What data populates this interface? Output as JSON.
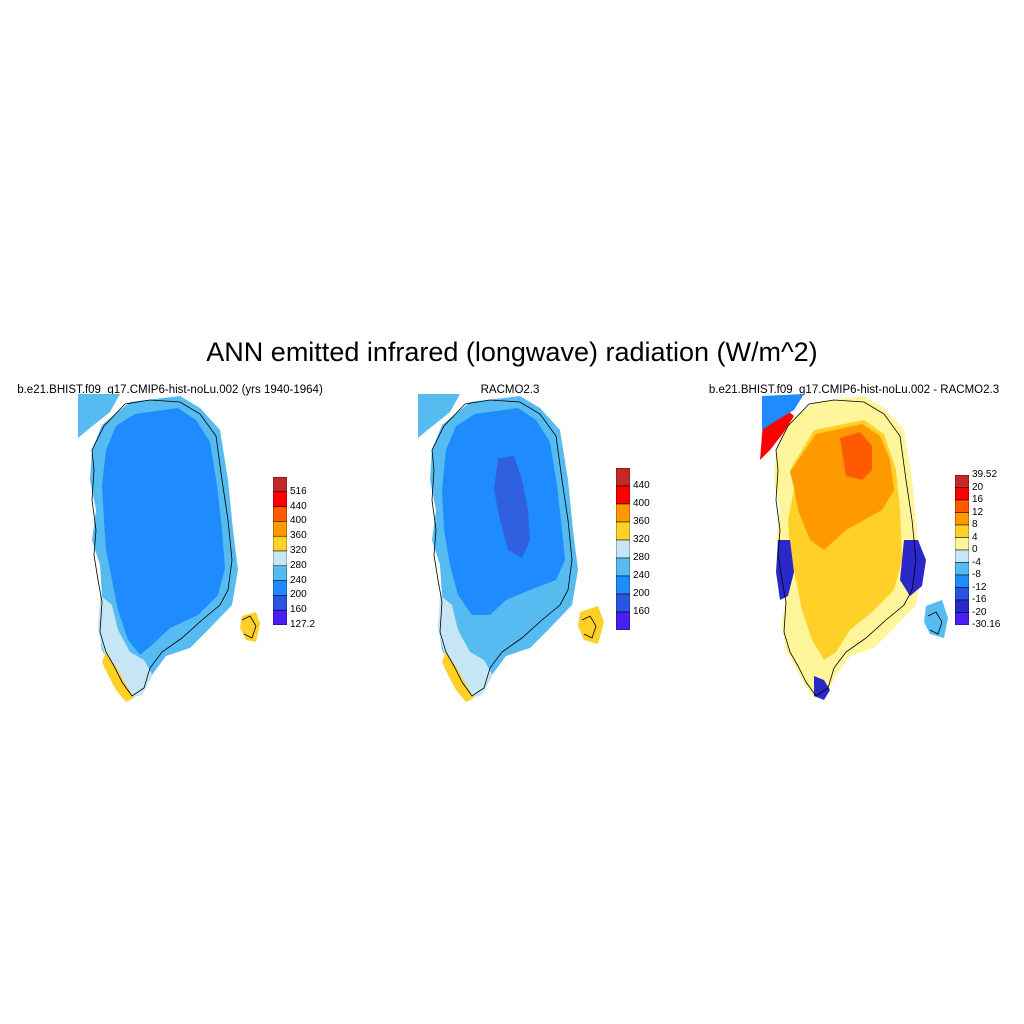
{
  "title": "ANN emitted infrared (longwave) radiation (W/m^2)",
  "panels": [
    {
      "title": "b.e21.BHIST.f09_g17.CMIP6-hist-noLu.002 (yrs 1940-1964)",
      "colorbar": {
        "labels": [
          "516",
          "440",
          "400",
          "360",
          "320",
          "280",
          "240",
          "200",
          "160",
          "127.2"
        ],
        "colors": [
          "#c62828",
          "#ff0000",
          "#ff5a00",
          "#ff9900",
          "#ffd028",
          "#c6e6f5",
          "#55bbf0",
          "#1e8cff",
          "#2a55e0",
          "#4a1ef0"
        ]
      },
      "fields": {
        "north": "#1e8cff",
        "south": "#1e8cff",
        "rim": "#55bbf0",
        "coast": "#c6e6f5",
        "tip": "#ffd028",
        "east_island": "#ffd028"
      }
    },
    {
      "title": "RACMO2.3",
      "colorbar": {
        "labels": [
          "440",
          "400",
          "360",
          "320",
          "280",
          "240",
          "200",
          "160"
        ],
        "colors": [
          "#c62828",
          "#ff0000",
          "#ff9900",
          "#ffd028",
          "#c6e6f5",
          "#55bbf0",
          "#1e8cff",
          "#2a55e0",
          "#4a1ef0"
        ]
      },
      "fields": {
        "north": "#1e8cff",
        "south": "#55bbf0",
        "rim": "#55bbf0",
        "coast": "#c6e6f5",
        "tip": "#ffd028",
        "east_island": "#ffd028",
        "core": "#3060e0"
      }
    },
    {
      "title": "b.e21.BHIST.f09_g17.CMIP6-hist-noLu.002 - RACMO2.3",
      "colorbar": {
        "labels": [
          "39.52",
          "20",
          "16",
          "12",
          "8",
          "4",
          "0",
          "-4",
          "-8",
          "-12",
          "-16",
          "-20",
          "-30.16"
        ],
        "colors": [
          "#c62828",
          "#ff0000",
          "#ff5a00",
          "#ff9900",
          "#ffd028",
          "#fff59a",
          "#c6e6f5",
          "#55bbf0",
          "#1e8cff",
          "#2a55e0",
          "#2a28c8",
          "#4a1ef0"
        ]
      },
      "fields": {
        "north": "#ff9900",
        "south": "#ffd028",
        "rim": "#fff59a",
        "coast": "#1e8cff",
        "tip": "#2a28c8",
        "east_island": "#55bbf0",
        "hot": "#ff5a00",
        "edge_hot": "#ff0000",
        "edge_cold": "#2a28c8"
      }
    }
  ]
}
